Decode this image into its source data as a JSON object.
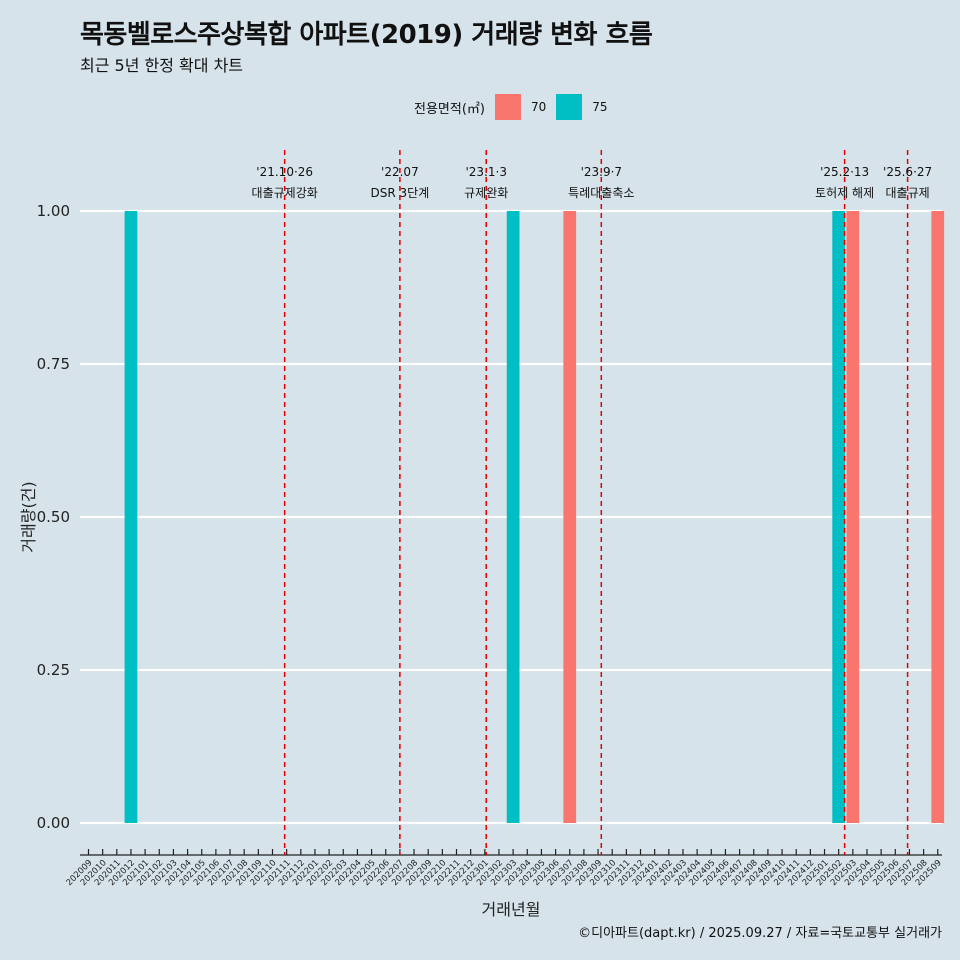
{
  "title": "목동벨로스주상복합 아파트(2019) 거래량 변화 흐름",
  "subtitle": "최근 5년 한정 확대 차트",
  "caption": "©디아파트(dapt.kr) / 2025.09.27 / 자료=국토교통부 실거래가",
  "legend": {
    "title": "전용면적(㎡)",
    "items": [
      {
        "label": "70",
        "color": "#f8766d"
      },
      {
        "label": "75",
        "color": "#00bfc4"
      }
    ]
  },
  "chart_data": {
    "type": "bar",
    "title": "목동벨로스주상복합 아파트(2019) 거래량 변화 흐름",
    "xlabel": "거래년월",
    "ylabel": "거래량(건)",
    "ylim": [
      0,
      1
    ],
    "yticks": [
      "0.00",
      "0.25",
      "0.50",
      "0.75",
      "1.00"
    ],
    "categories": [
      "202009",
      "202010",
      "202011",
      "202012",
      "202101",
      "202102",
      "202103",
      "202104",
      "202105",
      "202106",
      "202107",
      "202108",
      "202109",
      "202110",
      "202111",
      "202112",
      "202201",
      "202202",
      "202203",
      "202204",
      "202205",
      "202206",
      "202207",
      "202208",
      "202209",
      "202210",
      "202211",
      "202212",
      "202301",
      "202302",
      "202303",
      "202304",
      "202305",
      "202306",
      "202307",
      "202308",
      "202309",
      "202310",
      "202311",
      "202312",
      "202401",
      "202402",
      "202403",
      "202404",
      "202405",
      "202406",
      "202407",
      "202408",
      "202409",
      "202410",
      "202411",
      "202412",
      "202501",
      "202502",
      "202503",
      "202504",
      "202505",
      "202506",
      "202507",
      "202508",
      "202509"
    ],
    "series": [
      {
        "name": "70",
        "color": "#f8766d",
        "points": [
          {
            "x": "202307",
            "y": 1
          },
          {
            "x": "202503",
            "y": 1
          },
          {
            "x": "202509",
            "y": 1
          }
        ]
      },
      {
        "name": "75",
        "color": "#00bfc4",
        "points": [
          {
            "x": "202012",
            "y": 1
          },
          {
            "x": "202303",
            "y": 1
          },
          {
            "x": "202502",
            "y": 1
          }
        ]
      }
    ],
    "annotations": [
      {
        "x": "202110",
        "offset": 0.86,
        "date": "'21.10·26",
        "text": "대출규제강화"
      },
      {
        "x": "202207",
        "offset": 0.0,
        "date": "'22.07",
        "text": "DSR 3단계"
      },
      {
        "x": "202301",
        "offset": 0.1,
        "date": "'23.1·3",
        "text": "규제완화"
      },
      {
        "x": "202309",
        "offset": 0.23,
        "date": "'23.9·7",
        "text": "특례대출축소"
      },
      {
        "x": "202502",
        "offset": 0.42,
        "date": "'25.2·13",
        "text": "토허제 해제"
      },
      {
        "x": "202506",
        "offset": 0.87,
        "date": "'25.6·27",
        "text": "대출규제"
      }
    ]
  }
}
